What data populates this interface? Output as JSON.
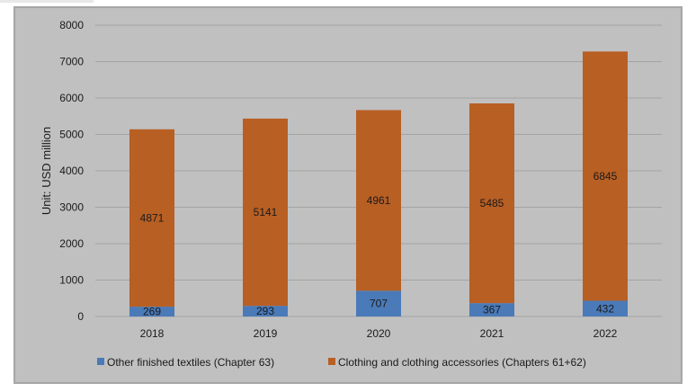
{
  "chart_data": {
    "type": "bar",
    "stacked": true,
    "categories": [
      "2018",
      "2019",
      "2020",
      "2021",
      "2022"
    ],
    "series": [
      {
        "name": "Other finished textiles (Chapter 63)",
        "values": [
          269,
          293,
          707,
          367,
          432
        ]
      },
      {
        "name": "Clothing and clothing accessories (Chapters 61+62)",
        "values": [
          4871,
          5141,
          4961,
          5485,
          6845
        ]
      }
    ],
    "yticks": [
      "0",
      "1000",
      "2000",
      "3000",
      "4000",
      "5000",
      "6000",
      "7000",
      "8000"
    ],
    "ylabel": "Unit: USD million",
    "xlabel": "",
    "title": "",
    "ylim": [
      0,
      8000
    ],
    "grid": true,
    "legend_position": "bottom",
    "colors": {
      "plot_background": "#c0c0c0",
      "frame_border": "#a6a6a6",
      "other_textiles": "#4a7ab8",
      "clothing": "#b85f24",
      "gridline": "#a3a3a3",
      "text": "#1a1a1a"
    }
  }
}
